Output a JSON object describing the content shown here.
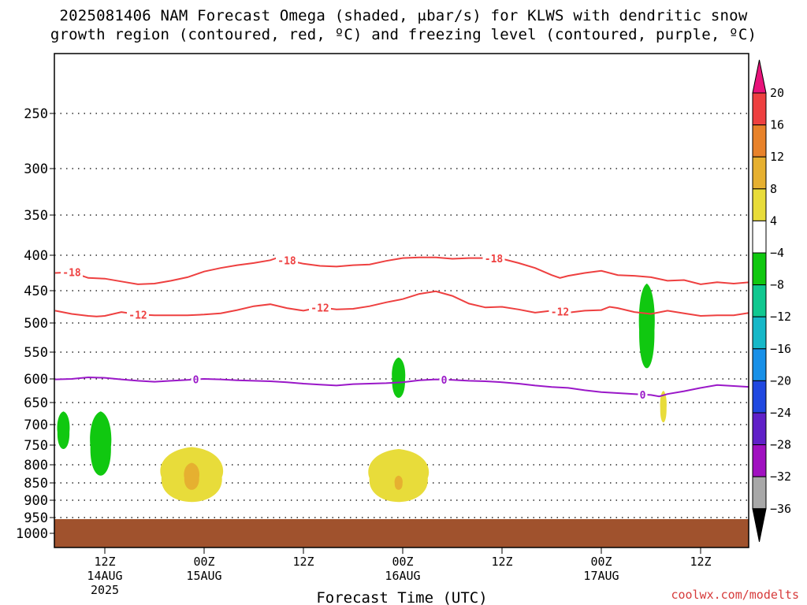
{
  "title": {
    "line1": "2025081406 NAM Forecast Omega (shaded, μbar/s) for KLWS with dendritic snow",
    "line2": "growth region (contoured, red, ºC) and freezing level (contoured, purple, ºC)"
  },
  "credit": "coolwx.com/modelts",
  "chart_data": {
    "type": "time-height cross section",
    "x_axis": {
      "title": "Forecast Time (UTC)",
      "ticks": [
        {
          "t": 6,
          "label": "12Z",
          "sub1": "14AUG",
          "sub2": "2025"
        },
        {
          "t": 18,
          "label": "00Z",
          "sub1": "15AUG",
          "sub2": ""
        },
        {
          "t": 30,
          "label": "12Z",
          "sub1": "",
          "sub2": ""
        },
        {
          "t": 42,
          "label": "00Z",
          "sub1": "16AUG",
          "sub2": ""
        },
        {
          "t": 54,
          "label": "12Z",
          "sub1": "",
          "sub2": ""
        },
        {
          "t": 66,
          "label": "00Z",
          "sub1": "17AUG",
          "sub2": ""
        },
        {
          "t": 78,
          "label": "12Z",
          "sub1": "",
          "sub2": ""
        }
      ],
      "range_hours": [
        0,
        84
      ]
    },
    "y_axis": {
      "units": "hPa",
      "scale": "pressure",
      "range": [
        1050,
        200
      ],
      "ticks": [
        250,
        300,
        350,
        400,
        450,
        500,
        550,
        600,
        650,
        700,
        750,
        800,
        850,
        900,
        950,
        1000
      ],
      "grid": "dotted"
    },
    "colorbar": {
      "levels": [
        "20",
        "16",
        "12",
        "8",
        "4",
        "−4",
        "−8",
        "−12",
        "−16",
        "−20",
        "−24",
        "−28",
        "−32",
        "−36"
      ],
      "colors": [
        "#e8137a",
        "#ee4040",
        "#e8822a",
        "#e6b030",
        "#e8dc3a",
        "#ffffff",
        "#10c810",
        "#10c890",
        "#16b8c8",
        "#1890e8",
        "#2048e0",
        "#6020c8",
        "#a010c0",
        "#a8a8a8",
        "#000000"
      ]
    },
    "contours": [
      {
        "label": "-18",
        "color": "#ee4040",
        "labels_at": [
          2,
          28,
          53
        ],
        "points": [
          [
            0,
            425
          ],
          [
            2,
            424
          ],
          [
            4,
            432
          ],
          [
            6,
            433
          ],
          [
            8,
            437
          ],
          [
            10,
            441
          ],
          [
            12,
            440
          ],
          [
            14,
            436
          ],
          [
            16,
            431
          ],
          [
            18,
            423
          ],
          [
            20,
            418
          ],
          [
            22,
            414
          ],
          [
            24,
            411
          ],
          [
            26,
            407
          ],
          [
            27,
            403
          ],
          [
            28,
            407
          ],
          [
            30,
            412
          ],
          [
            32,
            415
          ],
          [
            34,
            416
          ],
          [
            36,
            414
          ],
          [
            38,
            413
          ],
          [
            40,
            408
          ],
          [
            42,
            404
          ],
          [
            44,
            403
          ],
          [
            46,
            403
          ],
          [
            48,
            405
          ],
          [
            50,
            404
          ],
          [
            52,
            404
          ],
          [
            54,
            405
          ],
          [
            56,
            411
          ],
          [
            58,
            418
          ],
          [
            59,
            423
          ],
          [
            60,
            428
          ],
          [
            61,
            432
          ],
          [
            62,
            429
          ],
          [
            64,
            425
          ],
          [
            66,
            422
          ],
          [
            68,
            428
          ],
          [
            70,
            429
          ],
          [
            72,
            431
          ],
          [
            74,
            436
          ],
          [
            76,
            435
          ],
          [
            78,
            441
          ],
          [
            80,
            438
          ],
          [
            82,
            440
          ],
          [
            84,
            438
          ]
        ]
      },
      {
        "label": "-12",
        "color": "#ee4040",
        "labels_at": [
          10,
          32,
          61
        ],
        "points": [
          [
            0,
            481
          ],
          [
            2,
            486
          ],
          [
            4,
            489
          ],
          [
            5,
            490
          ],
          [
            6,
            489
          ],
          [
            8,
            483
          ],
          [
            10,
            487
          ],
          [
            12,
            488
          ],
          [
            14,
            488
          ],
          [
            16,
            488
          ],
          [
            18,
            487
          ],
          [
            20,
            485
          ],
          [
            22,
            480
          ],
          [
            24,
            474
          ],
          [
            26,
            471
          ],
          [
            28,
            477
          ],
          [
            30,
            481
          ],
          [
            32,
            476
          ],
          [
            34,
            479
          ],
          [
            36,
            478
          ],
          [
            38,
            474
          ],
          [
            40,
            468
          ],
          [
            42,
            463
          ],
          [
            44,
            455
          ],
          [
            46,
            451
          ],
          [
            48,
            458
          ],
          [
            50,
            470
          ],
          [
            52,
            476
          ],
          [
            54,
            475
          ],
          [
            56,
            479
          ],
          [
            58,
            484
          ],
          [
            60,
            481
          ],
          [
            62,
            484
          ],
          [
            64,
            481
          ],
          [
            66,
            480
          ],
          [
            67,
            475
          ],
          [
            68,
            477
          ],
          [
            70,
            483
          ],
          [
            72,
            486
          ],
          [
            74,
            481
          ],
          [
            76,
            485
          ],
          [
            78,
            489
          ],
          [
            80,
            488
          ],
          [
            82,
            488
          ],
          [
            84,
            484
          ]
        ]
      },
      {
        "label": "0",
        "color": "#9a18c8",
        "labels_at": [
          17,
          47,
          71
        ],
        "points": [
          [
            0,
            601
          ],
          [
            2,
            600
          ],
          [
            4,
            597
          ],
          [
            6,
            598
          ],
          [
            8,
            601
          ],
          [
            10,
            604
          ],
          [
            12,
            606
          ],
          [
            14,
            604
          ],
          [
            16,
            602
          ],
          [
            18,
            600
          ],
          [
            20,
            601
          ],
          [
            22,
            603
          ],
          [
            24,
            604
          ],
          [
            26,
            605
          ],
          [
            28,
            607
          ],
          [
            30,
            610
          ],
          [
            32,
            612
          ],
          [
            34,
            614
          ],
          [
            36,
            611
          ],
          [
            38,
            610
          ],
          [
            40,
            609
          ],
          [
            42,
            607
          ],
          [
            44,
            603
          ],
          [
            46,
            601
          ],
          [
            48,
            602
          ],
          [
            50,
            604
          ],
          [
            52,
            605
          ],
          [
            54,
            607
          ],
          [
            56,
            610
          ],
          [
            58,
            614
          ],
          [
            60,
            617
          ],
          [
            62,
            619
          ],
          [
            64,
            624
          ],
          [
            66,
            628
          ],
          [
            68,
            630
          ],
          [
            70,
            632
          ],
          [
            72,
            634
          ],
          [
            73,
            637
          ],
          [
            74,
            632
          ],
          [
            76,
            626
          ],
          [
            78,
            619
          ],
          [
            80,
            613
          ],
          [
            82,
            615
          ],
          [
            84,
            617
          ]
        ]
      }
    ],
    "ground_level_hpa": 955,
    "shaded_regions": [
      {
        "kind": "ascent",
        "omega_bin": "-4 to -8",
        "color": "#10c810",
        "center_t": 1,
        "top_hpa": 670,
        "bottom_hpa": 760
      },
      {
        "kind": "ascent",
        "omega_bin": "-4 to -8",
        "color": "#10c810",
        "center_t": 5.5,
        "top_hpa": 670,
        "bottom_hpa": 830
      },
      {
        "kind": "descent",
        "omega_bin": "4 to 8",
        "color": "#e8dc3a",
        "center_t": 16.5,
        "top_hpa": 755,
        "bottom_hpa": 905
      },
      {
        "kind": "descent",
        "omega_bin": "8 to 12",
        "color": "#e6b030",
        "center_t": 16.5,
        "top_hpa": 795,
        "bottom_hpa": 870
      },
      {
        "kind": "descent",
        "omega_bin": "4 to 8",
        "color": "#e8dc3a",
        "center_t": 41.5,
        "top_hpa": 760,
        "bottom_hpa": 905
      },
      {
        "kind": "descent",
        "omega_bin": "8 to 12",
        "color": "#e6b030",
        "center_t": 41.5,
        "top_hpa": 830,
        "bottom_hpa": 870
      },
      {
        "kind": "ascent",
        "omega_bin": "-4 to -8",
        "color": "#10c810",
        "center_t": 41.5,
        "top_hpa": 560,
        "bottom_hpa": 640
      },
      {
        "kind": "ascent",
        "omega_bin": "-4 to -8",
        "color": "#10c810",
        "center_t": 71.5,
        "top_hpa": 440,
        "bottom_hpa": 580
      },
      {
        "kind": "descent",
        "omega_bin": "4 to 8",
        "color": "#e8dc3a",
        "center_t": 73.5,
        "top_hpa": 625,
        "bottom_hpa": 695
      }
    ]
  }
}
